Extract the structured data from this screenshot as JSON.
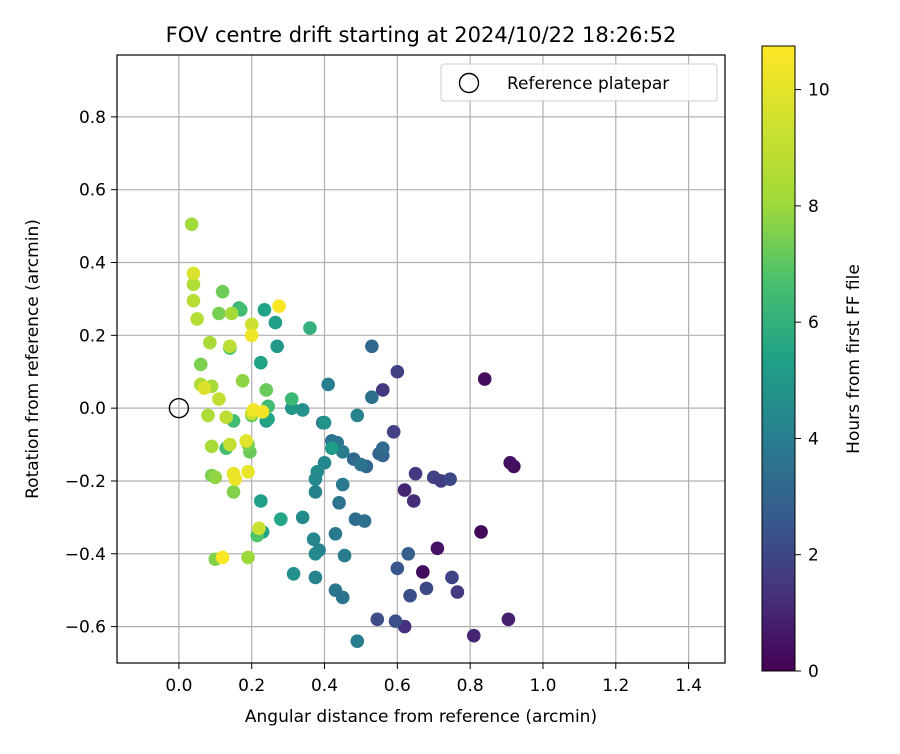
{
  "chart_data": {
    "type": "scatter",
    "title": "FOV centre drift starting at 2024/10/22 18:26:52",
    "xlabel": "Angular distance from reference (arcmin)",
    "ylabel": "Rotation from reference (arcmin)",
    "xlim": [
      -0.17,
      1.5
    ],
    "ylim": [
      -0.7,
      0.97
    ],
    "xticks": [
      0.0,
      0.2,
      0.4,
      0.6,
      0.8,
      1.0,
      1.2,
      1.4
    ],
    "xtick_labels": [
      "0.0",
      "0.2",
      "0.4",
      "0.6",
      "0.8",
      "1.0",
      "1.2",
      "1.4"
    ],
    "yticks": [
      -0.6,
      -0.4,
      -0.2,
      0.0,
      0.2,
      0.4,
      0.6,
      0.8
    ],
    "ytick_labels": [
      "−0.6",
      "−0.4",
      "−0.2",
      "0.0",
      "0.2",
      "0.4",
      "0.6",
      "0.8"
    ],
    "grid": true,
    "legend": {
      "position": "top-right",
      "entries": [
        "Reference platepar"
      ]
    },
    "reference_point": {
      "x": 0.0,
      "y": 0.0,
      "marker": "open-circle",
      "label": "Reference platepar"
    },
    "colorbar": {
      "label": "Hours from first FF file",
      "colormap": "viridis",
      "range": [
        0,
        10.75
      ],
      "ticks": [
        0,
        2,
        4,
        6,
        8,
        10
      ],
      "tick_labels": [
        "0",
        "2",
        "4",
        "6",
        "8",
        "10"
      ]
    },
    "points": [
      {
        "x": 0.84,
        "y": 0.08,
        "hours": 0.3
      },
      {
        "x": 0.92,
        "y": -0.16,
        "hours": 0.3
      },
      {
        "x": 0.91,
        "y": -0.15,
        "hours": 0.4
      },
      {
        "x": 0.83,
        "y": -0.34,
        "hours": 0.2
      },
      {
        "x": 0.67,
        "y": -0.45,
        "hours": 0.3
      },
      {
        "x": 0.71,
        "y": -0.385,
        "hours": 0.5
      },
      {
        "x": 0.905,
        "y": -0.58,
        "hours": 0.8
      },
      {
        "x": 0.81,
        "y": -0.625,
        "hours": 1.0
      },
      {
        "x": 0.62,
        "y": -0.6,
        "hours": 1.3
      },
      {
        "x": 0.62,
        "y": -0.225,
        "hours": 1.0
      },
      {
        "x": 0.645,
        "y": -0.255,
        "hours": 1.2
      },
      {
        "x": 0.56,
        "y": 0.05,
        "hours": 1.5
      },
      {
        "x": 0.6,
        "y": 0.1,
        "hours": 1.8
      },
      {
        "x": 0.59,
        "y": -0.065,
        "hours": 1.8
      },
      {
        "x": 0.65,
        "y": -0.18,
        "hours": 1.6
      },
      {
        "x": 0.7,
        "y": -0.19,
        "hours": 1.9
      },
      {
        "x": 0.72,
        "y": -0.2,
        "hours": 1.7
      },
      {
        "x": 0.745,
        "y": -0.195,
        "hours": 2.0
      },
      {
        "x": 0.765,
        "y": -0.505,
        "hours": 1.6
      },
      {
        "x": 0.75,
        "y": -0.465,
        "hours": 1.9
      },
      {
        "x": 0.68,
        "y": -0.495,
        "hours": 2.1
      },
      {
        "x": 0.635,
        "y": -0.515,
        "hours": 2.3
      },
      {
        "x": 0.6,
        "y": -0.44,
        "hours": 2.5
      },
      {
        "x": 0.595,
        "y": -0.585,
        "hours": 2.3
      },
      {
        "x": 0.545,
        "y": -0.58,
        "hours": 2.2
      },
      {
        "x": 0.63,
        "y": -0.4,
        "hours": 2.8
      },
      {
        "x": 0.53,
        "y": 0.17,
        "hours": 3.2
      },
      {
        "x": 0.55,
        "y": -0.125,
        "hours": 2.9
      },
      {
        "x": 0.56,
        "y": -0.13,
        "hours": 3.0
      },
      {
        "x": 0.56,
        "y": -0.11,
        "hours": 3.3
      },
      {
        "x": 0.515,
        "y": -0.16,
        "hours": 3.1
      },
      {
        "x": 0.53,
        "y": 0.03,
        "hours": 3.4
      },
      {
        "x": 0.48,
        "y": -0.14,
        "hours": 3.2
      },
      {
        "x": 0.5,
        "y": -0.155,
        "hours": 3.6
      },
      {
        "x": 0.485,
        "y": -0.305,
        "hours": 3.3
      },
      {
        "x": 0.51,
        "y": -0.31,
        "hours": 3.4
      },
      {
        "x": 0.44,
        "y": -0.26,
        "hours": 3.6
      },
      {
        "x": 0.45,
        "y": -0.21,
        "hours": 3.8
      },
      {
        "x": 0.42,
        "y": -0.09,
        "hours": 3.5
      },
      {
        "x": 0.435,
        "y": -0.095,
        "hours": 3.7
      },
      {
        "x": 0.45,
        "y": -0.12,
        "hours": 3.9
      },
      {
        "x": 0.395,
        "y": -0.04,
        "hours": 3.8
      },
      {
        "x": 0.41,
        "y": 0.065,
        "hours": 4.0
      },
      {
        "x": 0.43,
        "y": -0.345,
        "hours": 3.8
      },
      {
        "x": 0.455,
        "y": -0.405,
        "hours": 3.9
      },
      {
        "x": 0.43,
        "y": -0.5,
        "hours": 3.7
      },
      {
        "x": 0.45,
        "y": -0.52,
        "hours": 3.6
      },
      {
        "x": 0.49,
        "y": -0.64,
        "hours": 3.9
      },
      {
        "x": 0.49,
        "y": -0.02,
        "hours": 4.2
      },
      {
        "x": 0.4,
        "y": -0.15,
        "hours": 4.3
      },
      {
        "x": 0.38,
        "y": -0.175,
        "hours": 4.5
      },
      {
        "x": 0.375,
        "y": -0.195,
        "hours": 4.4
      },
      {
        "x": 0.375,
        "y": -0.23,
        "hours": 4.2
      },
      {
        "x": 0.37,
        "y": -0.36,
        "hours": 4.3
      },
      {
        "x": 0.385,
        "y": -0.39,
        "hours": 4.1
      },
      {
        "x": 0.375,
        "y": -0.4,
        "hours": 4.4
      },
      {
        "x": 0.375,
        "y": -0.465,
        "hours": 4.2
      },
      {
        "x": 0.34,
        "y": -0.3,
        "hours": 4.5
      },
      {
        "x": 0.315,
        "y": -0.455,
        "hours": 4.7
      },
      {
        "x": 0.34,
        "y": -0.005,
        "hours": 4.7
      },
      {
        "x": 0.31,
        "y": 0.0,
        "hours": 4.9
      },
      {
        "x": 0.4,
        "y": -0.04,
        "hours": 4.8
      },
      {
        "x": 0.42,
        "y": -0.11,
        "hours": 5.2
      },
      {
        "x": 0.27,
        "y": 0.17,
        "hours": 5.0
      },
      {
        "x": 0.265,
        "y": 0.235,
        "hours": 5.3
      },
      {
        "x": 0.235,
        "y": 0.27,
        "hours": 5.4
      },
      {
        "x": 0.225,
        "y": 0.125,
        "hours": 5.4
      },
      {
        "x": 0.24,
        "y": -0.035,
        "hours": 5.2
      },
      {
        "x": 0.245,
        "y": -0.03,
        "hours": 5.5
      },
      {
        "x": 0.225,
        "y": -0.255,
        "hours": 5.3
      },
      {
        "x": 0.28,
        "y": -0.305,
        "hours": 5.5
      },
      {
        "x": 0.23,
        "y": -0.34,
        "hours": 5.4
      },
      {
        "x": 0.36,
        "y": 0.22,
        "hours": 6.0
      },
      {
        "x": 0.31,
        "y": 0.025,
        "hours": 6.3
      },
      {
        "x": 0.245,
        "y": 0.005,
        "hours": 6.4
      },
      {
        "x": 0.165,
        "y": 0.275,
        "hours": 6.2
      },
      {
        "x": 0.17,
        "y": 0.27,
        "hours": 6.5
      },
      {
        "x": 0.14,
        "y": 0.165,
        "hours": 6.6
      },
      {
        "x": 0.15,
        "y": -0.035,
        "hours": 6.5
      },
      {
        "x": 0.13,
        "y": -0.11,
        "hours": 6.5
      },
      {
        "x": 0.215,
        "y": -0.35,
        "hours": 6.8
      },
      {
        "x": 0.24,
        "y": 0.05,
        "hours": 7.2
      },
      {
        "x": 0.2,
        "y": -0.02,
        "hours": 7.0
      },
      {
        "x": 0.195,
        "y": -0.12,
        "hours": 7.2
      },
      {
        "x": 0.19,
        "y": -0.1,
        "hours": 7.4
      },
      {
        "x": 0.12,
        "y": 0.32,
        "hours": 7.3
      },
      {
        "x": 0.11,
        "y": 0.26,
        "hours": 7.4
      },
      {
        "x": 0.06,
        "y": 0.12,
        "hours": 7.5
      },
      {
        "x": 0.15,
        "y": -0.23,
        "hours": 7.6
      },
      {
        "x": 0.09,
        "y": -0.185,
        "hours": 7.5
      },
      {
        "x": 0.1,
        "y": -0.19,
        "hours": 7.8
      },
      {
        "x": 0.1,
        "y": -0.415,
        "hours": 7.6
      },
      {
        "x": 0.19,
        "y": -0.41,
        "hours": 8.0
      },
      {
        "x": 0.035,
        "y": 0.505,
        "hours": 8.1
      },
      {
        "x": 0.175,
        "y": 0.075,
        "hours": 7.8
      },
      {
        "x": 0.145,
        "y": 0.26,
        "hours": 8.2
      },
      {
        "x": 0.085,
        "y": 0.18,
        "hours": 8.3
      },
      {
        "x": 0.09,
        "y": -0.105,
        "hours": 8.3
      },
      {
        "x": 0.08,
        "y": -0.02,
        "hours": 8.4
      },
      {
        "x": 0.09,
        "y": 0.06,
        "hours": 8.2
      },
      {
        "x": 0.06,
        "y": 0.065,
        "hours": 8.5
      },
      {
        "x": 0.04,
        "y": 0.34,
        "hours": 8.5
      },
      {
        "x": 0.04,
        "y": 0.295,
        "hours": 8.7
      },
      {
        "x": 0.05,
        "y": 0.245,
        "hours": 8.6
      },
      {
        "x": 0.14,
        "y": 0.17,
        "hours": 8.8
      },
      {
        "x": 0.13,
        "y": -0.025,
        "hours": 8.9
      },
      {
        "x": 0.11,
        "y": 0.025,
        "hours": 9.0
      },
      {
        "x": 0.14,
        "y": -0.1,
        "hours": 9.0
      },
      {
        "x": 0.2,
        "y": -0.015,
        "hours": 9.2
      },
      {
        "x": 0.22,
        "y": -0.33,
        "hours": 9.3
      },
      {
        "x": 0.2,
        "y": 0.23,
        "hours": 9.3
      },
      {
        "x": 0.04,
        "y": 0.37,
        "hours": 9.7
      },
      {
        "x": 0.07,
        "y": 0.055,
        "hours": 9.8
      },
      {
        "x": 0.185,
        "y": -0.09,
        "hours": 9.9
      },
      {
        "x": 0.15,
        "y": -0.18,
        "hours": 10.1
      },
      {
        "x": 0.155,
        "y": -0.195,
        "hours": 10.2
      },
      {
        "x": 0.19,
        "y": -0.175,
        "hours": 10.1
      },
      {
        "x": 0.2,
        "y": 0.2,
        "hours": 10.3
      },
      {
        "x": 0.205,
        "y": -0.005,
        "hours": 10.4
      },
      {
        "x": 0.23,
        "y": -0.01,
        "hours": 10.5
      },
      {
        "x": 0.275,
        "y": 0.28,
        "hours": 10.6
      },
      {
        "x": 0.12,
        "y": -0.41,
        "hours": 10.7
      }
    ]
  }
}
